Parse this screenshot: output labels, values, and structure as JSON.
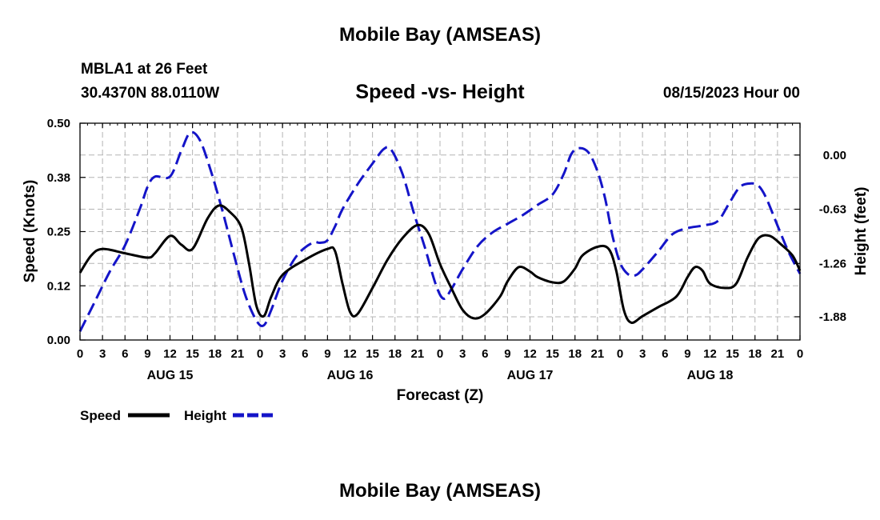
{
  "header": {
    "title": "Mobile Bay (AMSEAS)",
    "station": "MBLA1 at 26 Feet",
    "coordinates": "30.4370N  88.0110W",
    "subtitle": "Speed -vs- Height",
    "timestamp": "08/15/2023 Hour 00"
  },
  "footer": {
    "repeat_title": "Mobile Bay (AMSEAS)"
  },
  "colors": {
    "speed": "#000000",
    "height": "#1414c8",
    "grid": "#b4b4b4"
  },
  "chart_data": {
    "type": "line",
    "title": "Speed -vs- Height",
    "xlabel": "Forecast (Z)",
    "ylabel": "Speed (Knots)",
    "y2label": "Height (feet)",
    "x_range": [
      0,
      96
    ],
    "ylim": [
      0,
      0.5
    ],
    "y2lim": [
      -2.15,
      0.37
    ],
    "y_ticks": [
      "0.00",
      "0.12",
      "0.25",
      "0.38",
      "0.50"
    ],
    "y_tick_values": [
      0,
      0.125,
      0.25,
      0.375,
      0.5
    ],
    "y2_ticks": [
      "0.00",
      "-0.63",
      "-1.26",
      "-1.88"
    ],
    "y2_tick_values": [
      0,
      -0.63,
      -1.26,
      -1.88
    ],
    "x_tick_labels": [
      "0",
      "3",
      "6",
      "9",
      "12",
      "15",
      "18",
      "21",
      "0",
      "3",
      "6",
      "9",
      "12",
      "15",
      "18",
      "21",
      "0",
      "3",
      "6",
      "9",
      "12",
      "15",
      "18",
      "21",
      "0",
      "3",
      "6",
      "9",
      "12",
      "15",
      "18",
      "21",
      "0"
    ],
    "day_labels": [
      {
        "label": "AUG 15",
        "hour": 12
      },
      {
        "label": "AUG 16",
        "hour": 36
      },
      {
        "label": "AUG 17",
        "hour": 60
      },
      {
        "label": "AUG 18",
        "hour": 84
      }
    ],
    "legend": [
      {
        "name": "Speed",
        "style": "solid"
      },
      {
        "name": "Height",
        "style": "dashed"
      }
    ],
    "series": [
      {
        "name": "Speed",
        "axis": "left",
        "points": [
          [
            0,
            0.155
          ],
          [
            1.5,
            0.195
          ],
          [
            3,
            0.21
          ],
          [
            6,
            0.2
          ],
          [
            9,
            0.19
          ],
          [
            10,
            0.2
          ],
          [
            12,
            0.24
          ],
          [
            13.5,
            0.22
          ],
          [
            15,
            0.21
          ],
          [
            17,
            0.28
          ],
          [
            18.5,
            0.31
          ],
          [
            20,
            0.295
          ],
          [
            21.5,
            0.26
          ],
          [
            22.5,
            0.18
          ],
          [
            23.5,
            0.08
          ],
          [
            24.5,
            0.055
          ],
          [
            25.5,
            0.1
          ],
          [
            27,
            0.15
          ],
          [
            30,
            0.185
          ],
          [
            33,
            0.21
          ],
          [
            34,
            0.205
          ],
          [
            35,
            0.13
          ],
          [
            36,
            0.065
          ],
          [
            37,
            0.06
          ],
          [
            39,
            0.12
          ],
          [
            41,
            0.185
          ],
          [
            43,
            0.235
          ],
          [
            45,
            0.265
          ],
          [
            46.5,
            0.245
          ],
          [
            48,
            0.175
          ],
          [
            49.5,
            0.12
          ],
          [
            51,
            0.07
          ],
          [
            52.5,
            0.05
          ],
          [
            54,
            0.06
          ],
          [
            56,
            0.1
          ],
          [
            57,
            0.135
          ],
          [
            58.5,
            0.168
          ],
          [
            60,
            0.158
          ],
          [
            61,
            0.145
          ],
          [
            63,
            0.133
          ],
          [
            64.5,
            0.135
          ],
          [
            66,
            0.165
          ],
          [
            67,
            0.195
          ],
          [
            69,
            0.215
          ],
          [
            70.5,
            0.21
          ],
          [
            71.5,
            0.16
          ],
          [
            72.5,
            0.07
          ],
          [
            73.5,
            0.04
          ],
          [
            75,
            0.055
          ],
          [
            77,
            0.075
          ],
          [
            79.5,
            0.1
          ],
          [
            81,
            0.145
          ],
          [
            82,
            0.168
          ],
          [
            83,
            0.16
          ],
          [
            84,
            0.13
          ],
          [
            86,
            0.12
          ],
          [
            87.5,
            0.13
          ],
          [
            89,
            0.19
          ],
          [
            90.5,
            0.235
          ],
          [
            92,
            0.24
          ],
          [
            93.5,
            0.22
          ],
          [
            95,
            0.195
          ],
          [
            96,
            0.16
          ]
        ]
      },
      {
        "name": "Height",
        "axis": "right",
        "points": [
          [
            0,
            -2.05
          ],
          [
            2,
            -1.7
          ],
          [
            4,
            -1.35
          ],
          [
            6,
            -1.05
          ],
          [
            8,
            -0.62
          ],
          [
            9,
            -0.37
          ],
          [
            10,
            -0.25
          ],
          [
            12,
            -0.25
          ],
          [
            13.5,
            0.05
          ],
          [
            14.7,
            0.26
          ],
          [
            16,
            0.17
          ],
          [
            17.5,
            -0.2
          ],
          [
            19,
            -0.65
          ],
          [
            20.5,
            -1.15
          ],
          [
            22,
            -1.62
          ],
          [
            23.5,
            -1.92
          ],
          [
            24.5,
            -1.98
          ],
          [
            25.5,
            -1.8
          ],
          [
            27,
            -1.46
          ],
          [
            29,
            -1.16
          ],
          [
            31,
            -1.02
          ],
          [
            32,
            -1.02
          ],
          [
            33,
            -0.99
          ],
          [
            34,
            -0.83
          ],
          [
            35,
            -0.63
          ],
          [
            37,
            -0.34
          ],
          [
            39,
            -0.1
          ],
          [
            40.5,
            0.07
          ],
          [
            41.5,
            0.06
          ],
          [
            43,
            -0.22
          ],
          [
            44.5,
            -0.67
          ],
          [
            46,
            -1.08
          ],
          [
            47.5,
            -1.52
          ],
          [
            48.5,
            -1.67
          ],
          [
            49.5,
            -1.56
          ],
          [
            51,
            -1.33
          ],
          [
            53,
            -1.06
          ],
          [
            55,
            -0.9
          ],
          [
            57,
            -0.8
          ],
          [
            59,
            -0.7
          ],
          [
            61,
            -0.58
          ],
          [
            63,
            -0.46
          ],
          [
            64.5,
            -0.22
          ],
          [
            65.5,
            0.01
          ],
          [
            66.5,
            0.08
          ],
          [
            67.8,
            0.03
          ],
          [
            69,
            -0.19
          ],
          [
            70,
            -0.5
          ],
          [
            71,
            -0.94
          ],
          [
            72,
            -1.25
          ],
          [
            73,
            -1.38
          ],
          [
            74,
            -1.4
          ],
          [
            75,
            -1.33
          ],
          [
            77,
            -1.13
          ],
          [
            79,
            -0.92
          ],
          [
            81,
            -0.85
          ],
          [
            83,
            -0.82
          ],
          [
            85,
            -0.77
          ],
          [
            86.5,
            -0.57
          ],
          [
            88,
            -0.37
          ],
          [
            89.5,
            -0.33
          ],
          [
            90.5,
            -0.36
          ],
          [
            91.5,
            -0.5
          ],
          [
            93,
            -0.82
          ],
          [
            94.5,
            -1.13
          ],
          [
            96,
            -1.38
          ]
        ]
      }
    ]
  }
}
